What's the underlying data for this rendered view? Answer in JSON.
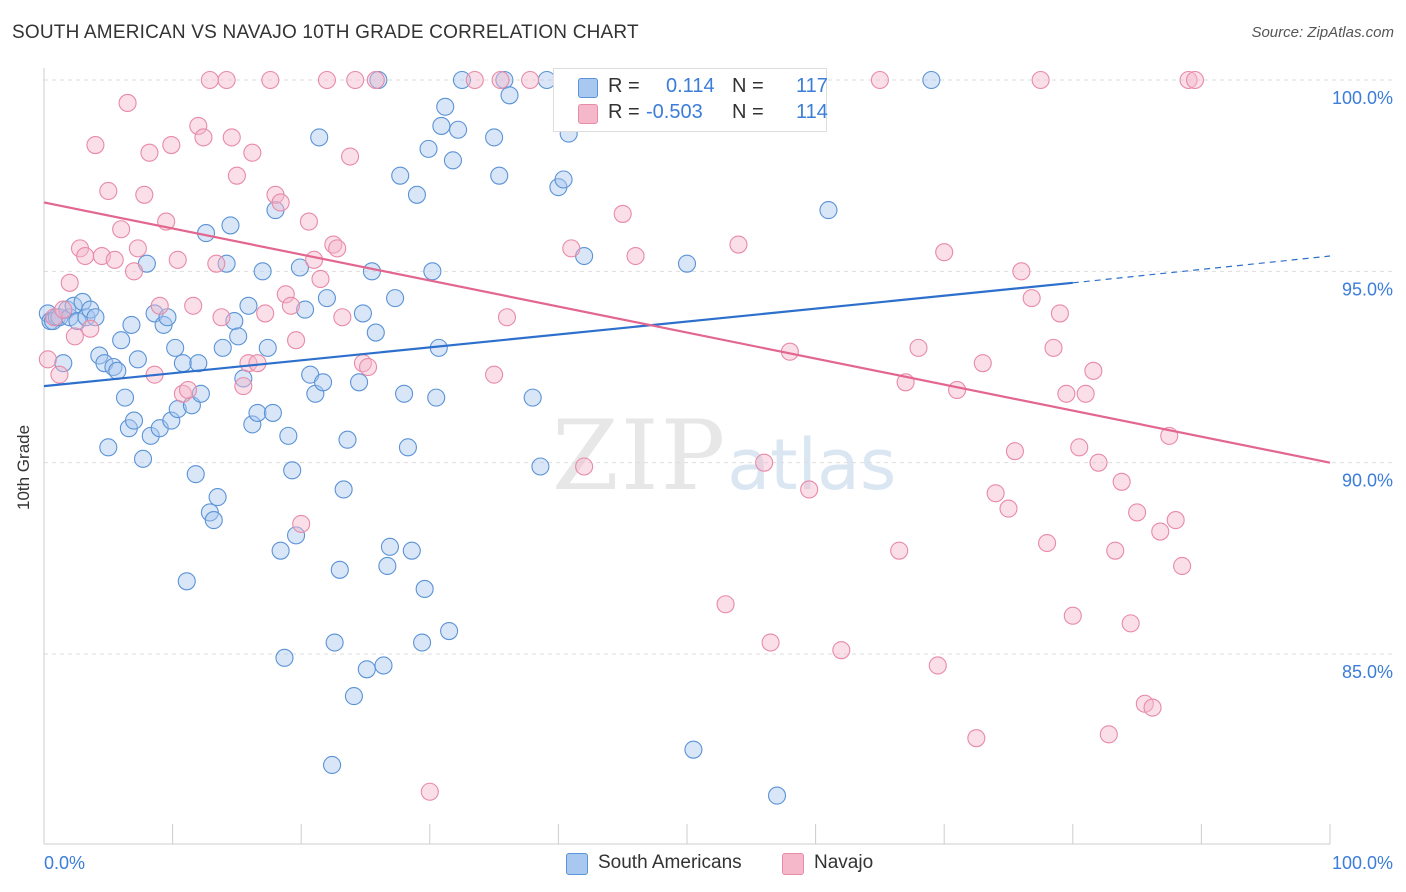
{
  "title": "SOUTH AMERICAN VS NAVAJO 10TH GRADE CORRELATION CHART",
  "source": "Source: ZipAtlas.com",
  "watermark": {
    "zip": "ZIP",
    "atlas": "atlas"
  },
  "legend": {
    "r_label": "R =",
    "n_label": "N =",
    "rows": [
      {
        "r": "0.114",
        "n": "117",
        "color": "#a9c8f0"
      },
      {
        "r": "-0.503",
        "n": "114",
        "color": "#f5b8cb"
      }
    ]
  },
  "bottom_legend": [
    {
      "label": "South Americans",
      "color": "#a9c8f0"
    },
    {
      "label": "Navajo",
      "color": "#f5b8cb"
    }
  ],
  "chart_data": {
    "type": "scatter",
    "title": "SOUTH AMERICAN VS NAVAJO 10TH GRADE CORRELATION CHART",
    "xlabel": "",
    "ylabel": "10th Grade",
    "x_tick_labels": [
      "0.0%",
      "100.0%"
    ],
    "y_tick_labels": [
      "100.0%",
      "95.0%",
      "90.0%",
      "85.0%"
    ],
    "xlim": [
      0,
      100
    ],
    "ylim": [
      80.5,
      101.0
    ],
    "y_ticks": [
      100,
      95,
      90,
      85
    ],
    "grid": "horizontal dashed",
    "colors": {
      "blue_fill": "#a9c8f0",
      "blue_edge": "#5b93d6",
      "blue_line": "#2d6fcc",
      "pink_fill": "#f5b8cb",
      "pink_edge": "#e88aa8",
      "pink_line": "#e3668f"
    },
    "series": [
      {
        "name": "South Americans",
        "r": 0.114,
        "n": 117,
        "trend": {
          "x0": 0,
          "y0": 92.0,
          "x1": 80,
          "y1": 94.7,
          "dashed_to_x": 100,
          "dashed_to_y": 95.4
        },
        "points": [
          [
            0.3,
            93.9
          ],
          [
            0.5,
            93.7
          ],
          [
            0.7,
            93.7
          ],
          [
            1.0,
            93.8
          ],
          [
            1.2,
            93.8
          ],
          [
            1.5,
            92.6
          ],
          [
            1.8,
            94.0
          ],
          [
            2.0,
            93.8
          ],
          [
            2.3,
            94.1
          ],
          [
            2.6,
            93.7
          ],
          [
            3.0,
            94.2
          ],
          [
            3.3,
            93.8
          ],
          [
            3.6,
            94.0
          ],
          [
            4.0,
            93.8
          ],
          [
            4.3,
            92.8
          ],
          [
            4.7,
            92.6
          ],
          [
            5.0,
            90.4
          ],
          [
            5.4,
            92.5
          ],
          [
            5.7,
            92.4
          ],
          [
            6.0,
            93.2
          ],
          [
            6.3,
            91.7
          ],
          [
            6.6,
            90.9
          ],
          [
            6.8,
            93.6
          ],
          [
            7.0,
            91.1
          ],
          [
            7.3,
            92.7
          ],
          [
            7.7,
            90.1
          ],
          [
            8.0,
            95.2
          ],
          [
            8.3,
            90.7
          ],
          [
            8.6,
            93.9
          ],
          [
            9.0,
            90.9
          ],
          [
            9.3,
            93.6
          ],
          [
            9.6,
            93.8
          ],
          [
            9.9,
            91.1
          ],
          [
            10.2,
            93.0
          ],
          [
            10.4,
            91.4
          ],
          [
            10.8,
            92.6
          ],
          [
            11.1,
            86.9
          ],
          [
            11.5,
            91.5
          ],
          [
            11.8,
            89.7
          ],
          [
            12.0,
            92.6
          ],
          [
            12.2,
            91.8
          ],
          [
            12.6,
            96.0
          ],
          [
            12.9,
            88.7
          ],
          [
            13.2,
            88.5
          ],
          [
            13.5,
            89.1
          ],
          [
            13.9,
            93.0
          ],
          [
            14.2,
            95.2
          ],
          [
            14.5,
            96.2
          ],
          [
            14.8,
            93.7
          ],
          [
            15.1,
            93.3
          ],
          [
            15.5,
            92.2
          ],
          [
            15.9,
            94.1
          ],
          [
            16.2,
            91.0
          ],
          [
            16.6,
            91.3
          ],
          [
            17.0,
            95.0
          ],
          [
            17.4,
            93.0
          ],
          [
            17.8,
            91.3
          ],
          [
            18.0,
            96.6
          ],
          [
            18.4,
            87.7
          ],
          [
            18.7,
            84.9
          ],
          [
            19.0,
            90.7
          ],
          [
            19.3,
            89.8
          ],
          [
            19.6,
            88.1
          ],
          [
            19.9,
            95.1
          ],
          [
            20.3,
            94.0
          ],
          [
            20.7,
            92.3
          ],
          [
            21.1,
            91.8
          ],
          [
            21.4,
            98.5
          ],
          [
            21.7,
            92.1
          ],
          [
            22.0,
            94.3
          ],
          [
            22.4,
            82.1
          ],
          [
            22.6,
            85.3
          ],
          [
            23.0,
            87.2
          ],
          [
            23.3,
            89.3
          ],
          [
            23.6,
            90.6
          ],
          [
            24.1,
            83.9
          ],
          [
            24.5,
            92.1
          ],
          [
            24.8,
            93.9
          ],
          [
            25.1,
            84.6
          ],
          [
            25.5,
            95.0
          ],
          [
            25.8,
            93.4
          ],
          [
            26.0,
            100.0
          ],
          [
            26.4,
            84.7
          ],
          [
            26.7,
            87.3
          ],
          [
            26.9,
            87.8
          ],
          [
            27.3,
            94.3
          ],
          [
            27.7,
            97.5
          ],
          [
            28.0,
            91.8
          ],
          [
            28.3,
            90.4
          ],
          [
            28.6,
            87.7
          ],
          [
            29.0,
            97.0
          ],
          [
            29.4,
            85.3
          ],
          [
            29.6,
            86.7
          ],
          [
            29.9,
            98.2
          ],
          [
            30.2,
            95.0
          ],
          [
            30.5,
            91.7
          ],
          [
            30.7,
            93.0
          ],
          [
            30.9,
            98.8
          ],
          [
            31.2,
            99.3
          ],
          [
            31.5,
            85.6
          ],
          [
            31.8,
            97.9
          ],
          [
            32.2,
            98.7
          ],
          [
            32.5,
            100.0
          ],
          [
            35.0,
            98.5
          ],
          [
            35.4,
            97.5
          ],
          [
            35.8,
            100.0
          ],
          [
            36.2,
            99.6
          ],
          [
            38.0,
            91.7
          ],
          [
            38.6,
            89.9
          ],
          [
            39.1,
            100.0
          ],
          [
            40.0,
            97.2
          ],
          [
            40.4,
            97.4
          ],
          [
            40.8,
            98.6
          ],
          [
            42.0,
            95.4
          ],
          [
            50.0,
            95.2
          ],
          [
            50.5,
            82.5
          ],
          [
            57.0,
            81.3
          ],
          [
            61.0,
            96.6
          ],
          [
            69.0,
            100.0
          ]
        ]
      },
      {
        "name": "Navajo",
        "r": -0.503,
        "n": 114,
        "trend": {
          "x0": 0,
          "y0": 96.8,
          "x1": 100,
          "y1": 90.0
        },
        "points": [
          [
            0.3,
            92.7
          ],
          [
            0.8,
            93.8
          ],
          [
            1.2,
            92.3
          ],
          [
            1.5,
            94.0
          ],
          [
            2.0,
            94.7
          ],
          [
            2.4,
            93.3
          ],
          [
            2.8,
            95.6
          ],
          [
            3.2,
            95.4
          ],
          [
            3.6,
            93.5
          ],
          [
            4.0,
            98.3
          ],
          [
            4.5,
            95.4
          ],
          [
            5.0,
            97.1
          ],
          [
            5.5,
            95.3
          ],
          [
            6.0,
            96.1
          ],
          [
            6.5,
            99.4
          ],
          [
            7.0,
            95.0
          ],
          [
            7.3,
            95.6
          ],
          [
            7.8,
            97.0
          ],
          [
            8.2,
            98.1
          ],
          [
            8.6,
            92.3
          ],
          [
            9.0,
            94.1
          ],
          [
            9.5,
            96.3
          ],
          [
            9.9,
            98.3
          ],
          [
            10.4,
            95.3
          ],
          [
            10.8,
            91.8
          ],
          [
            11.2,
            91.9
          ],
          [
            11.6,
            94.1
          ],
          [
            12.0,
            98.8
          ],
          [
            12.4,
            98.5
          ],
          [
            12.9,
            100.0
          ],
          [
            13.4,
            95.2
          ],
          [
            13.8,
            93.8
          ],
          [
            14.2,
            100.0
          ],
          [
            14.6,
            98.5
          ],
          [
            15.0,
            97.5
          ],
          [
            15.5,
            92.0
          ],
          [
            15.9,
            92.6
          ],
          [
            16.2,
            98.1
          ],
          [
            16.6,
            92.6
          ],
          [
            17.2,
            93.9
          ],
          [
            17.6,
            100.0
          ],
          [
            18.0,
            97.0
          ],
          [
            18.4,
            96.8
          ],
          [
            18.8,
            94.4
          ],
          [
            19.2,
            94.1
          ],
          [
            19.6,
            93.2
          ],
          [
            20.0,
            88.4
          ],
          [
            20.6,
            96.3
          ],
          [
            21.0,
            95.3
          ],
          [
            21.5,
            94.8
          ],
          [
            22.0,
            100.0
          ],
          [
            22.5,
            95.7
          ],
          [
            22.8,
            95.6
          ],
          [
            23.2,
            93.8
          ],
          [
            23.8,
            98.0
          ],
          [
            24.2,
            100.0
          ],
          [
            24.8,
            92.6
          ],
          [
            25.2,
            92.5
          ],
          [
            25.8,
            100.0
          ],
          [
            30.0,
            81.4
          ],
          [
            33.5,
            100.0
          ],
          [
            35.0,
            92.3
          ],
          [
            35.5,
            100.0
          ],
          [
            36.0,
            93.8
          ],
          [
            37.8,
            100.0
          ],
          [
            41.0,
            95.6
          ],
          [
            42.0,
            89.9
          ],
          [
            45.0,
            96.5
          ],
          [
            46.0,
            95.4
          ],
          [
            50.0,
            100.0
          ],
          [
            53.0,
            86.3
          ],
          [
            54.0,
            95.7
          ],
          [
            56.0,
            90.0
          ],
          [
            56.5,
            85.3
          ],
          [
            58.0,
            92.9
          ],
          [
            59.5,
            89.3
          ],
          [
            62.0,
            85.1
          ],
          [
            65.0,
            100.0
          ],
          [
            66.5,
            87.7
          ],
          [
            67.0,
            92.1
          ],
          [
            68.0,
            93.0
          ],
          [
            69.5,
            84.7
          ],
          [
            70.0,
            95.5
          ],
          [
            71.0,
            91.9
          ],
          [
            72.5,
            82.8
          ],
          [
            73.0,
            92.6
          ],
          [
            74.0,
            89.2
          ],
          [
            75.0,
            88.8
          ],
          [
            75.5,
            90.3
          ],
          [
            76.0,
            95.0
          ],
          [
            76.8,
            94.3
          ],
          [
            77.5,
            100.0
          ],
          [
            78.0,
            87.9
          ],
          [
            78.5,
            93.0
          ],
          [
            79.0,
            93.9
          ],
          [
            79.5,
            91.8
          ],
          [
            80.0,
            86.0
          ],
          [
            80.5,
            90.4
          ],
          [
            81.0,
            91.8
          ],
          [
            81.6,
            92.4
          ],
          [
            82.0,
            90.0
          ],
          [
            82.8,
            82.9
          ],
          [
            83.3,
            87.7
          ],
          [
            83.8,
            89.5
          ],
          [
            84.5,
            85.8
          ],
          [
            85.0,
            88.7
          ],
          [
            85.6,
            83.7
          ],
          [
            86.2,
            83.6
          ],
          [
            86.8,
            88.2
          ],
          [
            87.5,
            90.7
          ],
          [
            88.0,
            88.5
          ],
          [
            88.5,
            87.3
          ],
          [
            89.0,
            100.0
          ],
          [
            89.5,
            100.0
          ]
        ]
      }
    ]
  }
}
